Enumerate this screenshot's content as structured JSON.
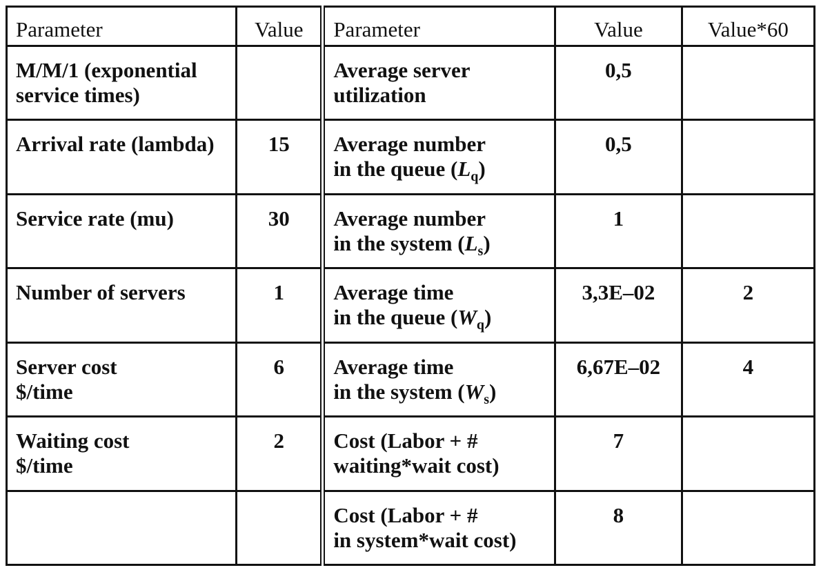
{
  "table": {
    "header": [
      "Parameter",
      "Value",
      "Parameter",
      "Value",
      "Value*60"
    ],
    "rows": [
      [
        {
          "text": [
            "M/M/1 (exponential",
            "service times)"
          ]
        },
        null,
        {
          "text": [
            "Average server",
            "utilization"
          ]
        },
        "0,5",
        null
      ],
      [
        {
          "text": [
            "Arrival rate (lambda)"
          ]
        },
        "15",
        {
          "text": [
            "Average number",
            "in the queue ("
          ],
          "symbol": "L",
          "sub": "q",
          "close": ")"
        },
        "0,5",
        null
      ],
      [
        {
          "text": [
            "Service rate (mu)"
          ]
        },
        "30",
        {
          "text": [
            "Average number",
            "in the system ("
          ],
          "symbol": "L",
          "sub": "s",
          "close": ")"
        },
        "1",
        null
      ],
      [
        {
          "text": [
            "Number of servers"
          ]
        },
        "1",
        {
          "text": [
            "Average time",
            "in the queue ("
          ],
          "symbol": "W",
          "sub": "q",
          "close": ")"
        },
        "3,3E–02",
        "2"
      ],
      [
        {
          "text": [
            "Server cost",
            "$/time"
          ]
        },
        "6",
        {
          "text": [
            "Average time",
            "in the system ("
          ],
          "symbol": "W",
          "sub": "s",
          "close": ")"
        },
        "6,67E–02",
        "4"
      ],
      [
        {
          "text": [
            "Waiting cost",
            "$/time"
          ]
        },
        "2",
        {
          "text": [
            "Cost (Labor + #",
            "waiting*wait cost)"
          ]
        },
        "7",
        null
      ],
      [
        null,
        null,
        {
          "text": [
            "Cost (Labor + #",
            "in system*wait cost)"
          ]
        },
        "8",
        null
      ]
    ]
  }
}
